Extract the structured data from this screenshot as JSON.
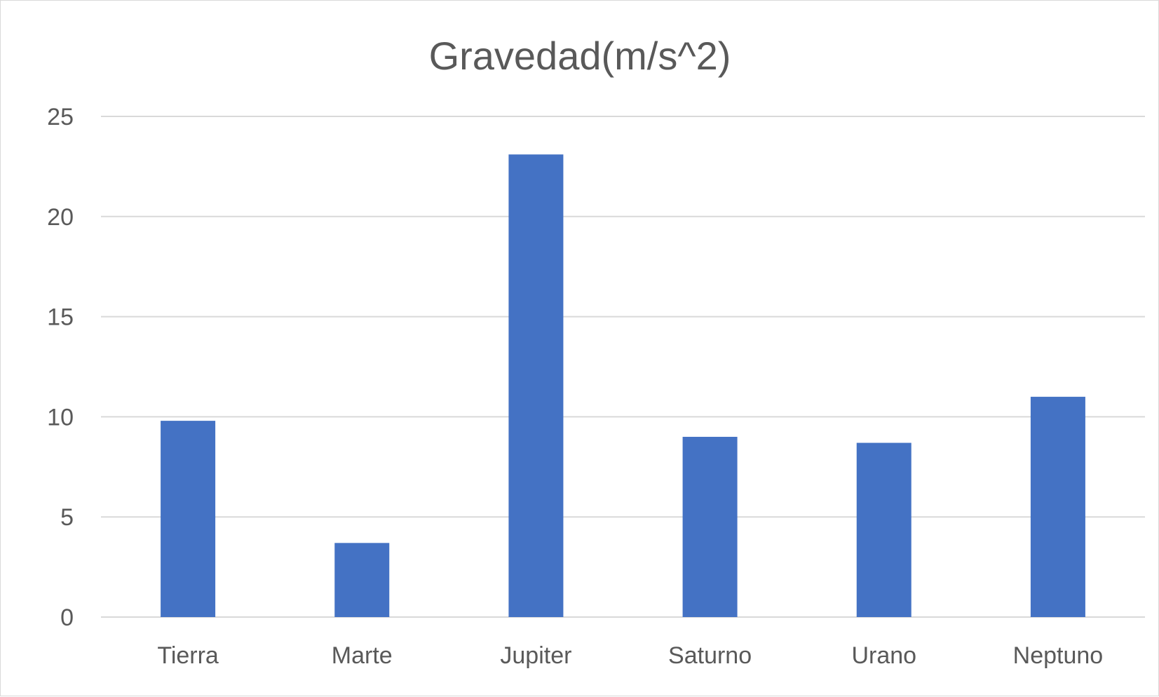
{
  "chart_data": {
    "type": "bar",
    "title": "Gravedad(m/s^2)",
    "xlabel": "",
    "ylabel": "",
    "categories": [
      "Tierra",
      "Marte",
      "Jupiter",
      "Saturno",
      "Urano",
      "Neptuno"
    ],
    "series": [
      {
        "values": [
          9.8,
          3.7,
          23.1,
          9.0,
          8.7,
          11.0
        ],
        "color": "#4472C4"
      }
    ],
    "ylim": [
      0,
      25
    ],
    "yticks": [
      "0",
      "5",
      "10",
      "15",
      "20",
      "25"
    ],
    "grid": true,
    "legend": "none"
  }
}
